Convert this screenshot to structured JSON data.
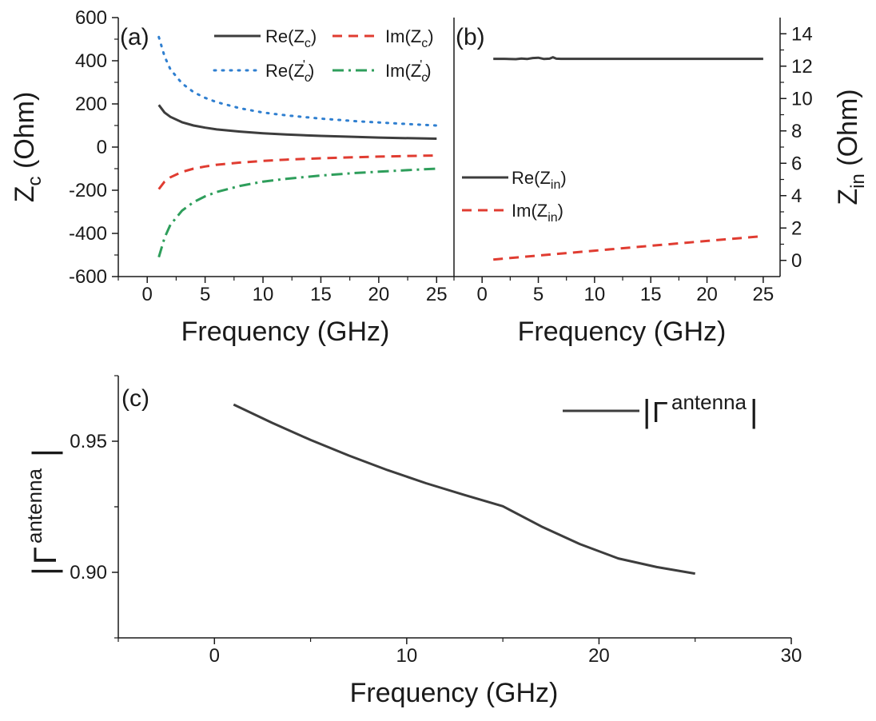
{
  "colors": {
    "axis": "#1a1a1a",
    "series_gray": "#3d3d3d",
    "series_red": "#e03c31",
    "series_blue": "#2f7fd0",
    "series_green": "#2e9e5b"
  },
  "shared": {
    "xlabel": "Frequency (GHz)"
  },
  "chart_data": [
    {
      "panel": "(a)",
      "type": "line",
      "xlabel": "Frequency (GHz)",
      "ylabel": "Z_c (Ohm)",
      "ylabel_main": "Z",
      "ylabel_sub": "c",
      "ylabel_rest": " (Ohm)",
      "xlim": [
        -2.5,
        26.5
      ],
      "ylim": [
        -600,
        600
      ],
      "xticks": [
        0,
        5,
        10,
        15,
        20,
        25
      ],
      "yticks": [
        -600,
        -400,
        -200,
        0,
        200,
        400,
        600
      ],
      "series": [
        {
          "name": "Re(Z_c)",
          "legend_main": "Re(Z",
          "legend_sub": "c",
          "legend_sup": "",
          "legend_end": ")",
          "color": "#3d3d3d",
          "style": "solid",
          "x": [
            1,
            1.5,
            2,
            3,
            4,
            5,
            6,
            8,
            10,
            12,
            15,
            18,
            20,
            22,
            25
          ],
          "y": [
            195,
            160,
            140,
            115,
            100,
            90,
            82,
            72,
            64,
            58,
            52,
            47,
            44,
            42,
            39
          ]
        },
        {
          "name": "Im(Z_c)",
          "legend_main": "Im(Z",
          "legend_sub": "c",
          "legend_sup": "",
          "legend_end": ")",
          "color": "#e03c31",
          "style": "dashed",
          "x": [
            1,
            1.5,
            2,
            3,
            4,
            5,
            6,
            8,
            10,
            12,
            15,
            18,
            20,
            22,
            25
          ],
          "y": [
            -195,
            -160,
            -140,
            -115,
            -100,
            -90,
            -82,
            -72,
            -64,
            -58,
            -52,
            -47,
            -44,
            -42,
            -39
          ]
        },
        {
          "name": "Re(Z'_c)",
          "legend_main": "Re(Z",
          "legend_sub": "c",
          "legend_sup": "'",
          "legend_end": ")",
          "color": "#2f7fd0",
          "style": "dotted",
          "x": [
            1,
            1.5,
            2,
            3,
            4,
            5,
            6,
            8,
            10,
            12,
            15,
            18,
            20,
            22,
            25
          ],
          "y": [
            510,
            420,
            360,
            295,
            255,
            228,
            208,
            180,
            160,
            147,
            132,
            120,
            114,
            108,
            100
          ]
        },
        {
          "name": "Im(Z'_c)",
          "legend_main": "Im(Z",
          "legend_sub": "c",
          "legend_sup": "'",
          "legend_end": ")",
          "color": "#2e9e5b",
          "style": "dashdot",
          "x": [
            1,
            1.5,
            2,
            3,
            4,
            5,
            6,
            8,
            10,
            12,
            15,
            18,
            20,
            22,
            25
          ],
          "y": [
            -510,
            -420,
            -360,
            -295,
            -255,
            -228,
            -208,
            -180,
            -160,
            -147,
            -132,
            -120,
            -114,
            -108,
            -100
          ]
        }
      ]
    },
    {
      "panel": "(b)",
      "type": "line",
      "xlabel": "Frequency (GHz)",
      "ylabel": "Z_in (Ohm)",
      "ylabel_main": "Z",
      "ylabel_sub": "in",
      "ylabel_rest": " (Ohm)",
      "xlim": [
        -2.5,
        26.5
      ],
      "ylim": [
        -1,
        15
      ],
      "xticks": [
        0,
        5,
        10,
        15,
        20,
        25
      ],
      "yticks": [
        0,
        2,
        4,
        6,
        8,
        10,
        12,
        14
      ],
      "series": [
        {
          "name": "Re(Z_in)",
          "legend_main": "Re(Z",
          "legend_sub": "in",
          "legend_sup": "",
          "legend_end": ")",
          "color": "#3d3d3d",
          "style": "solid",
          "x": [
            1,
            2,
            3,
            3.5,
            4,
            4.5,
            5,
            5.5,
            6,
            6.3,
            6.6,
            7,
            10,
            15,
            20,
            25
          ],
          "y": [
            12.45,
            12.45,
            12.43,
            12.47,
            12.44,
            12.5,
            12.52,
            12.44,
            12.46,
            12.55,
            12.46,
            12.45,
            12.45,
            12.45,
            12.45,
            12.45
          ]
        },
        {
          "name": "Im(Z_in)",
          "legend_main": "Im(Z",
          "legend_sub": "in",
          "legend_sup": "",
          "legend_end": ")",
          "color": "#e03c31",
          "style": "dashed",
          "x": [
            1,
            5,
            10,
            15,
            20,
            25
          ],
          "y": [
            0.05,
            0.3,
            0.6,
            0.9,
            1.2,
            1.5
          ]
        }
      ]
    },
    {
      "panel": "(c)",
      "type": "line",
      "xlabel": "Frequency (GHz)",
      "ylabel": "|Γ^antenna|",
      "xlim": [
        -5,
        30
      ],
      "ylim": [
        0.875,
        0.975
      ],
      "xticks": [
        0,
        10,
        20,
        30
      ],
      "yticks": [
        0.9,
        0.95
      ],
      "ytick_labels": [
        "0.90",
        "0.95"
      ],
      "series": [
        {
          "name": "|Γ^antenna|",
          "color": "#3d3d3d",
          "style": "solid",
          "x": [
            1,
            3,
            5,
            7,
            9,
            11,
            13,
            15,
            17,
            19,
            21,
            23,
            25
          ],
          "y": [
            0.964,
            0.957,
            0.9505,
            0.9445,
            0.939,
            0.934,
            0.9295,
            0.9252,
            0.9175,
            0.9108,
            0.9053,
            0.902,
            0.8995
          ]
        }
      ],
      "legend": {
        "bar_left": "|",
        "glyph": "Γ",
        "sup": "antenna",
        "bar_right": "|"
      },
      "ylabel_parts": {
        "bar_left": "|",
        "glyph": "Γ",
        "sup": "antenna",
        "bar_right": "|"
      }
    }
  ]
}
